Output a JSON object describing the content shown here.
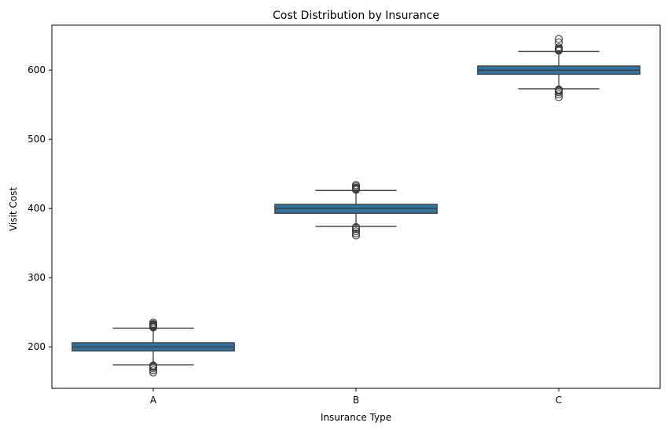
{
  "chart_data": {
    "type": "box",
    "title": "Cost Distribution by Insurance",
    "xlabel": "Insurance Type",
    "ylabel": "Visit Cost",
    "ylim": [
      140,
      665
    ],
    "yticks": [
      200,
      300,
      400,
      500,
      600
    ],
    "categories": [
      "A",
      "B",
      "C"
    ],
    "grid": false,
    "boxes": [
      {
        "category": "A",
        "q1": 194,
        "median": 200,
        "q3": 206,
        "whisker_low": 174,
        "whisker_high": 227,
        "outliers": [
          163,
          166,
          169,
          171,
          172,
          173,
          228,
          229,
          230,
          231,
          232,
          233,
          235
        ]
      },
      {
        "category": "B",
        "q1": 393,
        "median": 400,
        "q3": 406,
        "whisker_low": 374,
        "whisker_high": 426,
        "outliers": [
          361,
          364,
          367,
          370,
          372,
          373,
          427,
          428,
          429,
          430,
          432,
          434
        ]
      },
      {
        "category": "C",
        "q1": 594,
        "median": 600,
        "q3": 606,
        "whisker_low": 573,
        "whisker_high": 627,
        "outliers": [
          561,
          565,
          568,
          570,
          571,
          572,
          628,
          629,
          630,
          631,
          633,
          640,
          645
        ]
      }
    ],
    "colors": {
      "box_fill": "#3274a1",
      "edge": "#3d3d3d",
      "axis": "#000000"
    }
  }
}
